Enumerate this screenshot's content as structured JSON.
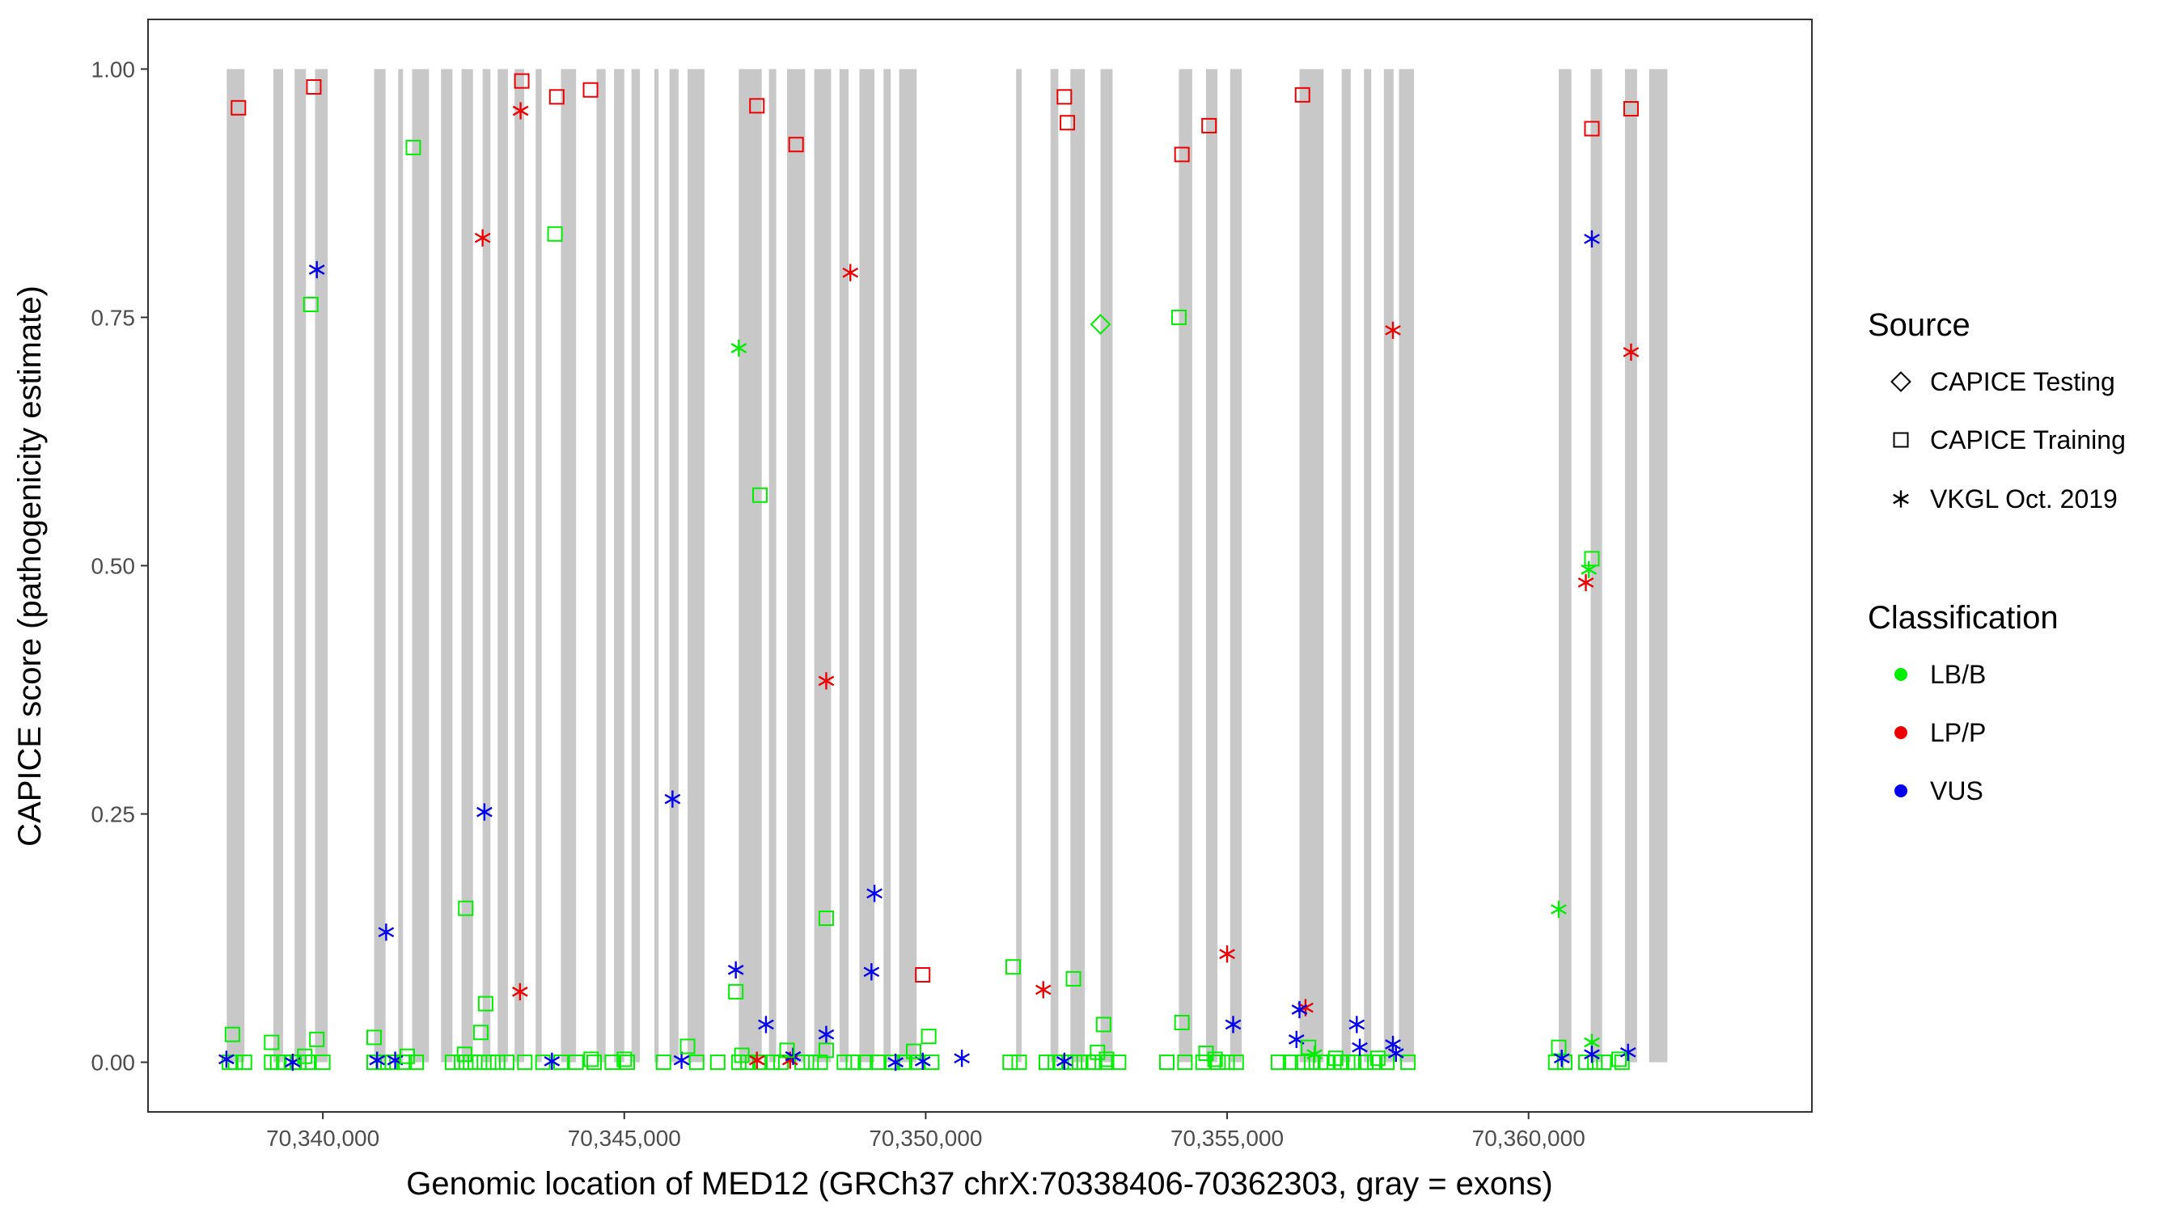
{
  "chart_data": {
    "type": "scatter",
    "title": "",
    "xlabel": "Genomic location of MED12 (GRCh37 chrX:70338406-70362303, gray = exons)",
    "ylabel": "CAPICE score (pathogenicity estimate)",
    "xlim": [
      70337100,
      70364700
    ],
    "ylim": [
      -0.05,
      1.05
    ],
    "x_ticks": [
      70340000,
      70345000,
      70350000,
      70355000,
      70360000
    ],
    "x_tick_labels": [
      "70,340,000",
      "70,345,000",
      "70,350,000",
      "70,355,000",
      "70,360,000"
    ],
    "y_ticks": [
      0,
      0.25,
      0.5,
      0.75,
      1.0
    ],
    "y_tick_labels": [
      "0.00",
      "0.25",
      "0.50",
      "0.75",
      "1.00"
    ],
    "exons": [
      [
        70338406,
        70338700
      ],
      [
        70339180,
        70339340
      ],
      [
        70339530,
        70339720
      ],
      [
        70339870,
        70340080
      ],
      [
        70340850,
        70341040
      ],
      [
        70341250,
        70341330
      ],
      [
        70341480,
        70341760
      ],
      [
        70341960,
        70342150
      ],
      [
        70342300,
        70342490
      ],
      [
        70342650,
        70342780
      ],
      [
        70342900,
        70343070
      ],
      [
        70343180,
        70343340
      ],
      [
        70343530,
        70343630
      ],
      [
        70343950,
        70344200
      ],
      [
        70344540,
        70344690
      ],
      [
        70344830,
        70345000
      ],
      [
        70345120,
        70345260
      ],
      [
        70345500,
        70345570
      ],
      [
        70345750,
        70345900
      ],
      [
        70346050,
        70346330
      ],
      [
        70346900,
        70347280
      ],
      [
        70347400,
        70347520
      ],
      [
        70347700,
        70348000
      ],
      [
        70348150,
        70348430
      ],
      [
        70348570,
        70348720
      ],
      [
        70348900,
        70349150
      ],
      [
        70349300,
        70349420
      ],
      [
        70349560,
        70349850
      ],
      [
        70351500,
        70351590
      ],
      [
        70352070,
        70352200
      ],
      [
        70352400,
        70352640
      ],
      [
        70352900,
        70353100
      ],
      [
        70354200,
        70354420
      ],
      [
        70354650,
        70354840
      ],
      [
        70355050,
        70355240
      ],
      [
        70356200,
        70356600
      ],
      [
        70356900,
        70357050
      ],
      [
        70357270,
        70357390
      ],
      [
        70357600,
        70357760
      ],
      [
        70357850,
        70358100
      ],
      [
        70360500,
        70360710
      ],
      [
        70361030,
        70361220
      ],
      [
        70361600,
        70361800
      ],
      [
        70362000,
        70362303
      ]
    ],
    "sources": [
      "CAPICE Testing",
      "CAPICE Training",
      "VKGL Oct. 2019"
    ],
    "source_shapes": [
      "diamond",
      "square",
      "asterisk"
    ],
    "classifications": [
      "LB/B",
      "LP/P",
      "VUS"
    ],
    "class_colors": {
      "LB/B": "#00ee00",
      "LP/P": "#ee0000",
      "VUS": "#0000ee"
    },
    "points": [
      {
        "x": 70338600,
        "y": 0.961,
        "source": "CAPICE Training",
        "class": "LP/P"
      },
      {
        "x": 70339850,
        "y": 0.982,
        "source": "CAPICE Training",
        "class": "LP/P"
      },
      {
        "x": 70339900,
        "y": 0.798,
        "source": "VKGL Oct. 2019",
        "class": "VUS"
      },
      {
        "x": 70339800,
        "y": 0.763,
        "source": "CAPICE Training",
        "class": "LB/B"
      },
      {
        "x": 70341500,
        "y": 0.921,
        "source": "CAPICE Training",
        "class": "LB/B"
      },
      {
        "x": 70342650,
        "y": 0.83,
        "source": "VKGL Oct. 2019",
        "class": "LP/P"
      },
      {
        "x": 70343280,
        "y": 0.958,
        "source": "VKGL Oct. 2019",
        "class": "LP/P"
      },
      {
        "x": 70343300,
        "y": 0.988,
        "source": "CAPICE Training",
        "class": "LP/P"
      },
      {
        "x": 70343880,
        "y": 0.972,
        "source": "CAPICE Training",
        "class": "LP/P"
      },
      {
        "x": 70344440,
        "y": 0.979,
        "source": "CAPICE Training",
        "class": "LP/P"
      },
      {
        "x": 70343850,
        "y": 0.834,
        "source": "CAPICE Training",
        "class": "LB/B"
      },
      {
        "x": 70341050,
        "y": 0.131,
        "source": "VKGL Oct. 2019",
        "class": "VUS"
      },
      {
        "x": 70342370,
        "y": 0.155,
        "source": "CAPICE Training",
        "class": "LB/B"
      },
      {
        "x": 70342680,
        "y": 0.252,
        "source": "VKGL Oct. 2019",
        "class": "VUS"
      },
      {
        "x": 70345800,
        "y": 0.265,
        "source": "VKGL Oct. 2019",
        "class": "VUS"
      },
      {
        "x": 70343270,
        "y": 0.071,
        "source": "VKGL Oct. 2019",
        "class": "LP/P"
      },
      {
        "x": 70342700,
        "y": 0.059,
        "source": "CAPICE Training",
        "class": "LB/B"
      },
      {
        "x": 70342620,
        "y": 0.03,
        "source": "CAPICE Training",
        "class": "LB/B"
      },
      {
        "x": 70340850,
        "y": 0.025,
        "source": "CAPICE Training",
        "class": "LB/B"
      },
      {
        "x": 70338500,
        "y": 0.028,
        "source": "CAPICE Training",
        "class": "LB/B"
      },
      {
        "x": 70339150,
        "y": 0.02,
        "source": "CAPICE Training",
        "class": "LB/B"
      },
      {
        "x": 70339900,
        "y": 0.023,
        "source": "CAPICE Training",
        "class": "LB/B"
      },
      {
        "x": 70338400,
        "y": 0.003,
        "source": "VKGL Oct. 2019",
        "class": "VUS"
      },
      {
        "x": 70339500,
        "y": 0.0,
        "source": "VKGL Oct. 2019",
        "class": "VUS"
      },
      {
        "x": 70340900,
        "y": 0.002,
        "source": "VKGL Oct. 2019",
        "class": "VUS"
      },
      {
        "x": 70341200,
        "y": 0.002,
        "source": "VKGL Oct. 2019",
        "class": "VUS"
      },
      {
        "x": 70343800,
        "y": 0.001,
        "source": "VKGL Oct. 2019",
        "class": "VUS"
      },
      {
        "x": 70345950,
        "y": 0.002,
        "source": "VKGL Oct. 2019",
        "class": "VUS"
      },
      {
        "x": 70346050,
        "y": 0.016,
        "source": "CAPICE Training",
        "class": "LB/B"
      },
      {
        "x": 70347200,
        "y": 0.963,
        "source": "CAPICE Training",
        "class": "LP/P"
      },
      {
        "x": 70347850,
        "y": 0.924,
        "source": "CAPICE Training",
        "class": "LP/P"
      },
      {
        "x": 70348750,
        "y": 0.795,
        "source": "VKGL Oct. 2019",
        "class": "LP/P"
      },
      {
        "x": 70346900,
        "y": 0.719,
        "source": "VKGL Oct. 2019",
        "class": "LB/B"
      },
      {
        "x": 70347250,
        "y": 0.571,
        "source": "CAPICE Training",
        "class": "LB/B"
      },
      {
        "x": 70348350,
        "y": 0.384,
        "source": "VKGL Oct. 2019",
        "class": "LP/P"
      },
      {
        "x": 70349150,
        "y": 0.17,
        "source": "VKGL Oct. 2019",
        "class": "VUS"
      },
      {
        "x": 70348350,
        "y": 0.145,
        "source": "CAPICE Training",
        "class": "LB/B"
      },
      {
        "x": 70346850,
        "y": 0.093,
        "source": "VKGL Oct. 2019",
        "class": "VUS"
      },
      {
        "x": 70349100,
        "y": 0.091,
        "source": "VKGL Oct. 2019",
        "class": "VUS"
      },
      {
        "x": 70349950,
        "y": 0.088,
        "source": "CAPICE Training",
        "class": "LP/P"
      },
      {
        "x": 70346850,
        "y": 0.071,
        "source": "CAPICE Training",
        "class": "LB/B"
      },
      {
        "x": 70347350,
        "y": 0.038,
        "source": "VKGL Oct. 2019",
        "class": "VUS"
      },
      {
        "x": 70348350,
        "y": 0.028,
        "source": "VKGL Oct. 2019",
        "class": "VUS"
      },
      {
        "x": 70350050,
        "y": 0.026,
        "source": "CAPICE Training",
        "class": "LB/B"
      },
      {
        "x": 70347200,
        "y": 0.002,
        "source": "VKGL Oct. 2019",
        "class": "LP/P"
      },
      {
        "x": 70347750,
        "y": 0.002,
        "source": "VKGL Oct. 2019",
        "class": "LP/P"
      },
      {
        "x": 70347800,
        "y": 0.006,
        "source": "VKGL Oct. 2019",
        "class": "VUS"
      },
      {
        "x": 70349500,
        "y": 0.0,
        "source": "VKGL Oct. 2019",
        "class": "VUS"
      },
      {
        "x": 70349950,
        "y": 0.001,
        "source": "VKGL Oct. 2019",
        "class": "VUS"
      },
      {
        "x": 70350600,
        "y": 0.004,
        "source": "VKGL Oct. 2019",
        "class": "VUS"
      },
      {
        "x": 70351450,
        "y": 0.096,
        "source": "CAPICE Training",
        "class": "LB/B"
      },
      {
        "x": 70351950,
        "y": 0.073,
        "source": "VKGL Oct. 2019",
        "class": "LP/P"
      },
      {
        "x": 70352450,
        "y": 0.084,
        "source": "CAPICE Training",
        "class": "LB/B"
      },
      {
        "x": 70352950,
        "y": 0.038,
        "source": "CAPICE Training",
        "class": "LB/B"
      },
      {
        "x": 70352300,
        "y": 0.972,
        "source": "CAPICE Training",
        "class": "LP/P"
      },
      {
        "x": 70352350,
        "y": 0.946,
        "source": "CAPICE Training",
        "class": "LP/P"
      },
      {
        "x": 70352900,
        "y": 0.743,
        "source": "CAPICE Testing",
        "class": "LB/B"
      },
      {
        "x": 70352300,
        "y": 0.001,
        "source": "VKGL Oct. 2019",
        "class": "VUS"
      },
      {
        "x": 70352850,
        "y": 0.01,
        "source": "CAPICE Training",
        "class": "LB/B"
      },
      {
        "x": 70354250,
        "y": 0.914,
        "source": "CAPICE Training",
        "class": "LP/P"
      },
      {
        "x": 70354700,
        "y": 0.943,
        "source": "CAPICE Training",
        "class": "LP/P"
      },
      {
        "x": 70354200,
        "y": 0.75,
        "source": "CAPICE Training",
        "class": "LB/B"
      },
      {
        "x": 70355000,
        "y": 0.109,
        "source": "VKGL Oct. 2019",
        "class": "LP/P"
      },
      {
        "x": 70354250,
        "y": 0.04,
        "source": "CAPICE Training",
        "class": "LB/B"
      },
      {
        "x": 70355100,
        "y": 0.038,
        "source": "VKGL Oct. 2019",
        "class": "VUS"
      },
      {
        "x": 70354650,
        "y": 0.009,
        "source": "CAPICE Training",
        "class": "LB/B"
      },
      {
        "x": 70356250,
        "y": 0.974,
        "source": "CAPICE Training",
        "class": "LP/P"
      },
      {
        "x": 70357750,
        "y": 0.737,
        "source": "VKGL Oct. 2019",
        "class": "LP/P"
      },
      {
        "x": 70356300,
        "y": 0.055,
        "source": "VKGL Oct. 2019",
        "class": "LP/P"
      },
      {
        "x": 70356200,
        "y": 0.053,
        "source": "VKGL Oct. 2019",
        "class": "VUS"
      },
      {
        "x": 70357150,
        "y": 0.038,
        "source": "VKGL Oct. 2019",
        "class": "VUS"
      },
      {
        "x": 70356150,
        "y": 0.023,
        "source": "VKGL Oct. 2019",
        "class": "VUS"
      },
      {
        "x": 70357750,
        "y": 0.018,
        "source": "VKGL Oct. 2019",
        "class": "VUS"
      },
      {
        "x": 70357200,
        "y": 0.015,
        "source": "VKGL Oct. 2019",
        "class": "VUS"
      },
      {
        "x": 70357800,
        "y": 0.009,
        "source": "VKGL Oct. 2019",
        "class": "VUS"
      },
      {
        "x": 70356350,
        "y": 0.015,
        "source": "CAPICE Training",
        "class": "LB/B"
      },
      {
        "x": 70356450,
        "y": 0.008,
        "source": "VKGL Oct. 2019",
        "class": "LB/B"
      },
      {
        "x": 70361050,
        "y": 0.94,
        "source": "CAPICE Training",
        "class": "LP/P"
      },
      {
        "x": 70361700,
        "y": 0.96,
        "source": "CAPICE Training",
        "class": "LP/P"
      },
      {
        "x": 70361050,
        "y": 0.829,
        "source": "VKGL Oct. 2019",
        "class": "VUS"
      },
      {
        "x": 70361700,
        "y": 0.715,
        "source": "VKGL Oct. 2019",
        "class": "LP/P"
      },
      {
        "x": 70361050,
        "y": 0.507,
        "source": "CAPICE Training",
        "class": "LB/B"
      },
      {
        "x": 70361000,
        "y": 0.496,
        "source": "VKGL Oct. 2019",
        "class": "LB/B"
      },
      {
        "x": 70360950,
        "y": 0.483,
        "source": "VKGL Oct. 2019",
        "class": "LP/P"
      },
      {
        "x": 70360500,
        "y": 0.154,
        "source": "VKGL Oct. 2019",
        "class": "LB/B"
      },
      {
        "x": 70360500,
        "y": 0.015,
        "source": "CAPICE Training",
        "class": "LB/B"
      },
      {
        "x": 70361050,
        "y": 0.02,
        "source": "VKGL Oct. 2019",
        "class": "LB/B"
      },
      {
        "x": 70360550,
        "y": 0.004,
        "source": "VKGL Oct. 2019",
        "class": "VUS"
      },
      {
        "x": 70361050,
        "y": 0.008,
        "source": "VKGL Oct. 2019",
        "class": "VUS"
      },
      {
        "x": 70361650,
        "y": 0.01,
        "source": "VKGL Oct. 2019",
        "class": "VUS"
      },
      {
        "x": 70339700,
        "y": 0.006,
        "source": "CAPICE Training",
        "class": "LB/B"
      },
      {
        "x": 70341400,
        "y": 0.006,
        "source": "CAPICE Training",
        "class": "LB/B"
      },
      {
        "x": 70342350,
        "y": 0.008,
        "source": "CAPICE Training",
        "class": "LB/B"
      },
      {
        "x": 70344450,
        "y": 0.003,
        "source": "CAPICE Training",
        "class": "LB/B"
      },
      {
        "x": 70345000,
        "y": 0.003,
        "source": "CAPICE Training",
        "class": "LB/B"
      },
      {
        "x": 70346950,
        "y": 0.007,
        "source": "CAPICE Training",
        "class": "LB/B"
      },
      {
        "x": 70347700,
        "y": 0.012,
        "source": "CAPICE Training",
        "class": "LB/B"
      },
      {
        "x": 70348350,
        "y": 0.012,
        "source": "CAPICE Training",
        "class": "LB/B"
      },
      {
        "x": 70349800,
        "y": 0.011,
        "source": "CAPICE Training",
        "class": "LB/B"
      },
      {
        "x": 70353000,
        "y": 0.003,
        "source": "CAPICE Training",
        "class": "LB/B"
      },
      {
        "x": 70354800,
        "y": 0.003,
        "source": "CAPICE Training",
        "class": "LB/B"
      },
      {
        "x": 70356800,
        "y": 0.004,
        "source": "CAPICE Training",
        "class": "LB/B"
      },
      {
        "x": 70357500,
        "y": 0.004,
        "source": "CAPICE Training",
        "class": "LB/B"
      },
      {
        "x": 70361500,
        "y": 0.003,
        "source": "CAPICE Training",
        "class": "LB/B"
      }
    ],
    "baseline_cluster_x": [
      70338450,
      70338550,
      70338700,
      70339150,
      70339250,
      70339350,
      70339500,
      70339600,
      70339750,
      70340000,
      70340850,
      70341000,
      70341150,
      70341350,
      70341550,
      70342150,
      70342300,
      70342450,
      70342600,
      70342750,
      70342900,
      70343050,
      70343350,
      70343650,
      70343950,
      70344200,
      70344500,
      70344800,
      70345050,
      70345650,
      70346200,
      70346550,
      70346900,
      70347050,
      70347250,
      70347450,
      70347600,
      70347950,
      70348100,
      70348250,
      70348650,
      70348800,
      70349000,
      70349200,
      70349450,
      70349650,
      70349850,
      70350100,
      70351400,
      70351550,
      70352000,
      70352150,
      70352250,
      70352400,
      70352550,
      70352700,
      70352800,
      70353000,
      70353200,
      70354000,
      70354300,
      70354600,
      70354850,
      70355000,
      70355150,
      70355850,
      70356050,
      70356250,
      70356400,
      70356550,
      70356650,
      70356900,
      70357000,
      70357100,
      70357300,
      70357450,
      70357650,
      70358000,
      70360450,
      70360600,
      70360950,
      70361100,
      70361250,
      70361550
    ],
    "legend": [
      {
        "title": "Source",
        "items": [
          "CAPICE Testing",
          "CAPICE Training",
          "VKGL Oct. 2019"
        ]
      },
      {
        "title": "Classification",
        "items": [
          "LB/B",
          "LP/P",
          "VUS"
        ]
      }
    ]
  }
}
